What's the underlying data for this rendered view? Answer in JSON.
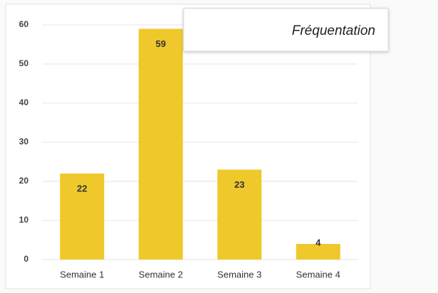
{
  "chart_data": {
    "type": "bar",
    "title": "Fréquentation",
    "categories": [
      "Semaine 1",
      "Semaine 2",
      "Semaine 3",
      "Semaine 4"
    ],
    "values": [
      22,
      59,
      23,
      4
    ],
    "color": "#efc82c",
    "ylim": [
      0,
      60
    ],
    "yticks": [
      0,
      10,
      20,
      30,
      40,
      50,
      60
    ],
    "grid": true
  }
}
